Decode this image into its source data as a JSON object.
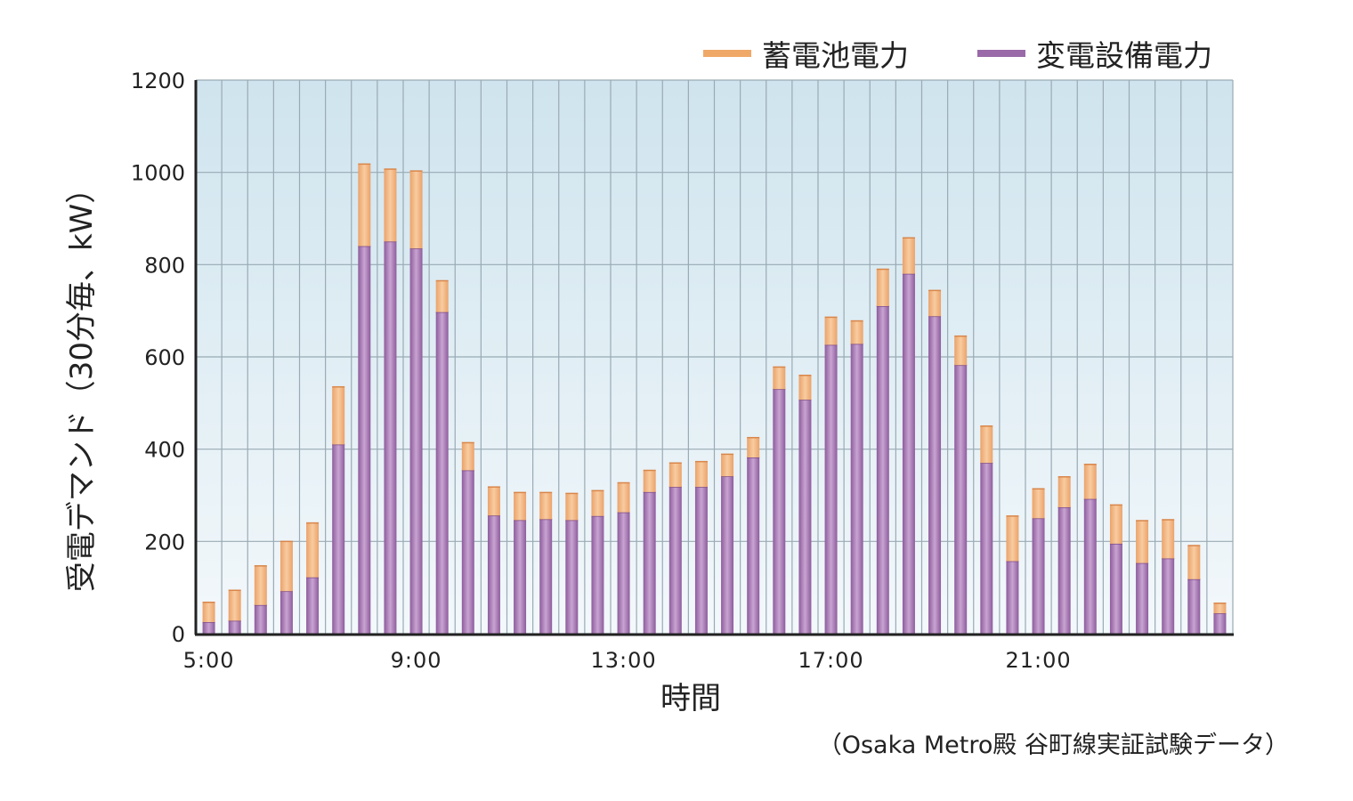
{
  "chart_data": {
    "type": "bar",
    "stacked": true,
    "xlabel": "時間",
    "ylabel": "受電デマンド（30分毎、kW）",
    "ylim": [
      0,
      1200
    ],
    "yticks": [
      "0",
      "200",
      "400",
      "600",
      "800",
      "1000",
      "1200"
    ],
    "xticks": [
      {
        "index": 0,
        "label": "5:00"
      },
      {
        "index": 8,
        "label": "9:00"
      },
      {
        "index": 16,
        "label": "13:00"
      },
      {
        "index": 24,
        "label": "17:00"
      },
      {
        "index": 32,
        "label": "21:00"
      }
    ],
    "grid": true,
    "legend_position": "top-right",
    "note": "（Osaka Metro殿 谷町線実証試験データ）",
    "series": [
      {
        "name": "変電設備電力",
        "color": "#9a6aa8",
        "values": [
          25,
          28,
          62,
          92,
          122,
          410,
          840,
          850,
          835,
          697,
          354,
          256,
          246,
          248,
          246,
          255,
          263,
          307,
          318,
          318,
          341,
          382,
          530,
          507,
          626,
          628,
          710,
          780,
          688,
          582,
          370,
          157,
          250,
          274,
          292,
          195,
          153,
          163,
          118,
          44
        ]
      },
      {
        "name": "蓄電池電力",
        "color": "#f0a868",
        "values": [
          43,
          66,
          85,
          108,
          118,
          125,
          178,
          157,
          168,
          68,
          60,
          62,
          60,
          58,
          58,
          55,
          64,
          47,
          52,
          55,
          48,
          43,
          48,
          53,
          60,
          50,
          80,
          78,
          56,
          63,
          80,
          98,
          64,
          66,
          75,
          84,
          92,
          84,
          73,
          22
        ]
      }
    ]
  }
}
